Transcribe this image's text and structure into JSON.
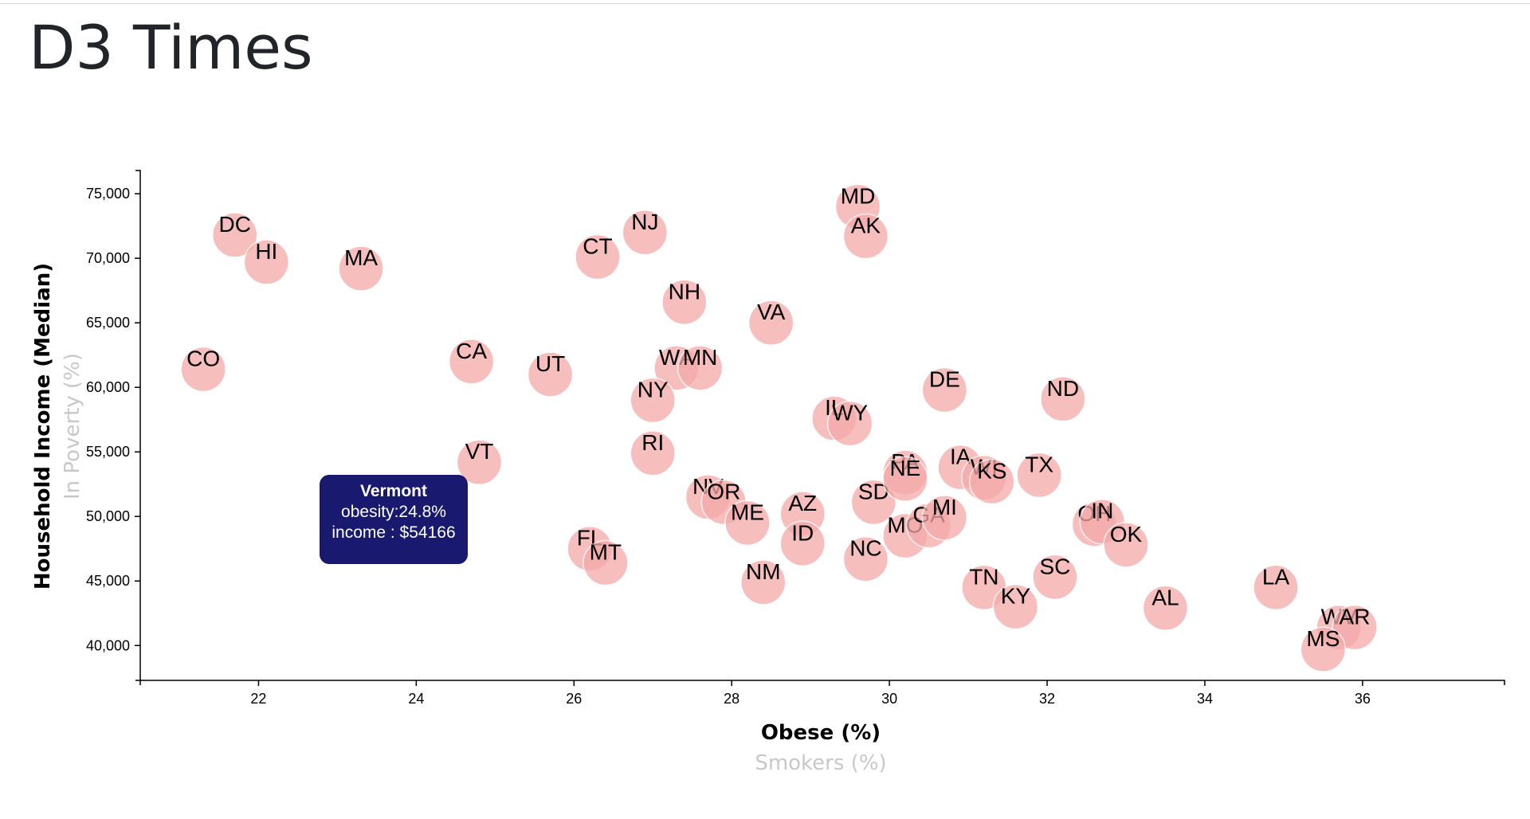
{
  "page": {
    "title": "D3 Times"
  },
  "tooltip": {
    "title": "Vermont",
    "line1": "obesity:24.8%",
    "line2": "income : $54166"
  },
  "chart_data": {
    "type": "scatter",
    "xlabel": "Obese (%)",
    "xlabel_alt": "Smokers (%)",
    "ylabel": "Household Income (Median)",
    "ylabel_alt": "In Poverty (%)",
    "xlim": [
      20.5,
      37.8
    ],
    "ylim": [
      37300,
      76800
    ],
    "x_ticks": [
      22,
      24,
      26,
      28,
      30,
      32,
      34,
      36
    ],
    "y_ticks": [
      40000,
      45000,
      50000,
      55000,
      60000,
      65000,
      70000,
      75000
    ],
    "y_tick_labels": [
      "40,000",
      "45,000",
      "50,000",
      "55,000",
      "60,000",
      "65,000",
      "70,000",
      "75,000"
    ],
    "grid": false,
    "points": [
      {
        "abbr": "DC",
        "x": 21.7,
        "y": 71800
      },
      {
        "abbr": "HI",
        "x": 22.1,
        "y": 69700
      },
      {
        "abbr": "MA",
        "x": 23.3,
        "y": 69200
      },
      {
        "abbr": "CO",
        "x": 21.3,
        "y": 61400
      },
      {
        "abbr": "CA",
        "x": 24.7,
        "y": 62000
      },
      {
        "abbr": "UT",
        "x": 25.7,
        "y": 61000
      },
      {
        "abbr": "VT",
        "x": 24.8,
        "y": 54200
      },
      {
        "abbr": "CT",
        "x": 26.3,
        "y": 70100
      },
      {
        "abbr": "NJ",
        "x": 26.9,
        "y": 72000
      },
      {
        "abbr": "NH",
        "x": 27.4,
        "y": 66600
      },
      {
        "abbr": "WA",
        "x": 27.3,
        "y": 61500
      },
      {
        "abbr": "MN",
        "x": 27.6,
        "y": 61500
      },
      {
        "abbr": "NY",
        "x": 27.0,
        "y": 59000
      },
      {
        "abbr": "RI",
        "x": 27.0,
        "y": 54900
      },
      {
        "abbr": "NV",
        "x": 27.7,
        "y": 51500
      },
      {
        "abbr": "OR",
        "x": 27.9,
        "y": 51100
      },
      {
        "abbr": "ME",
        "x": 28.2,
        "y": 49500
      },
      {
        "abbr": "FL",
        "x": 26.2,
        "y": 47500
      },
      {
        "abbr": "MT",
        "x": 26.4,
        "y": 46400
      },
      {
        "abbr": "NM",
        "x": 28.4,
        "y": 44900
      },
      {
        "abbr": "AZ",
        "x": 28.9,
        "y": 50200
      },
      {
        "abbr": "ID",
        "x": 28.9,
        "y": 47900
      },
      {
        "abbr": "VA",
        "x": 28.5,
        "y": 65000
      },
      {
        "abbr": "MD",
        "x": 29.6,
        "y": 74000
      },
      {
        "abbr": "AK",
        "x": 29.7,
        "y": 71700
      },
      {
        "abbr": "IL",
        "x": 29.3,
        "y": 57600
      },
      {
        "abbr": "WY",
        "x": 29.5,
        "y": 57200
      },
      {
        "abbr": "SD",
        "x": 29.8,
        "y": 51100
      },
      {
        "abbr": "NC",
        "x": 29.7,
        "y": 46700
      },
      {
        "abbr": "PA",
        "x": 30.2,
        "y": 53400
      },
      {
        "abbr": "NE",
        "x": 30.2,
        "y": 52900
      },
      {
        "abbr": "MO",
        "x": 30.2,
        "y": 48500
      },
      {
        "abbr": "GA",
        "x": 30.5,
        "y": 49300
      },
      {
        "abbr": "MI",
        "x": 30.7,
        "y": 49900
      },
      {
        "abbr": "DE",
        "x": 30.7,
        "y": 59800
      },
      {
        "abbr": "IA",
        "x": 30.9,
        "y": 53800
      },
      {
        "abbr": "WI",
        "x": 31.2,
        "y": 53000
      },
      {
        "abbr": "KS",
        "x": 31.3,
        "y": 52700
      },
      {
        "abbr": "TX",
        "x": 31.9,
        "y": 53200
      },
      {
        "abbr": "ND",
        "x": 32.2,
        "y": 59100
      },
      {
        "abbr": "TN",
        "x": 31.2,
        "y": 44500
      },
      {
        "abbr": "KY",
        "x": 31.6,
        "y": 43000
      },
      {
        "abbr": "SC",
        "x": 32.1,
        "y": 45300
      },
      {
        "abbr": "OH",
        "x": 32.6,
        "y": 49400
      },
      {
        "abbr": "IN",
        "x": 32.7,
        "y": 49600
      },
      {
        "abbr": "OK",
        "x": 33.0,
        "y": 47800
      },
      {
        "abbr": "AL",
        "x": 33.5,
        "y": 42900
      },
      {
        "abbr": "LA",
        "x": 34.9,
        "y": 44500
      },
      {
        "abbr": "WV",
        "x": 35.7,
        "y": 41400
      },
      {
        "abbr": "AR",
        "x": 35.9,
        "y": 41400
      },
      {
        "abbr": "MS",
        "x": 35.5,
        "y": 39700
      }
    ]
  }
}
